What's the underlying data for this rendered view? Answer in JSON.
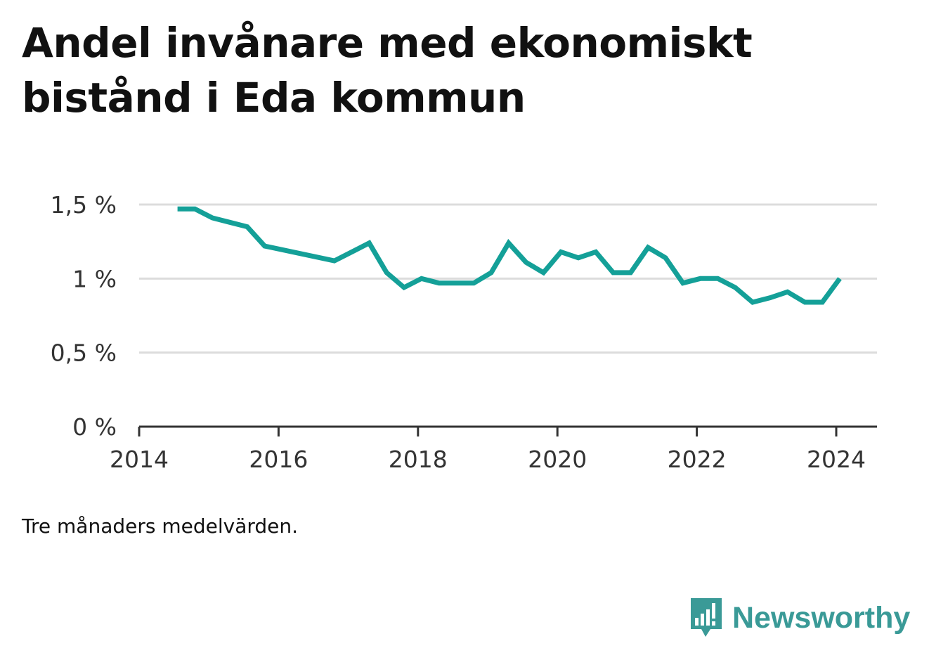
{
  "title": "Andel invånare med ekonomiskt bistånd i Eda kommun",
  "note": "Tre månaders medelvärden.",
  "brand": {
    "name": "Newsworthy",
    "icon": "bar-chart-speech-bubble-icon",
    "color": "#3a9a97"
  },
  "chart_data": {
    "type": "line",
    "title": "Andel invånare med ekonomiskt bistånd i Eda kommun",
    "xlabel": "",
    "ylabel": "",
    "line_color": "#14a098",
    "grid": true,
    "xlim": [
      2014,
      2024.5
    ],
    "ylim": [
      0,
      1.5
    ],
    "x_ticks": [
      2014,
      2016,
      2018,
      2020,
      2022,
      2024
    ],
    "x_tick_labels": [
      "2014",
      "2016",
      "2018",
      "2020",
      "2022",
      "2024"
    ],
    "y_ticks": [
      0,
      0.5,
      1,
      1.5
    ],
    "y_tick_labels": [
      "0 %",
      "0,5 %",
      "1 %",
      "1,5 %"
    ],
    "series": [
      {
        "x": [
          2014.55,
          2014.8,
          2015.05,
          2015.3,
          2015.55,
          2015.8,
          2016.8,
          2017.3,
          2017.55,
          2017.8,
          2018.05,
          2018.3,
          2018.55,
          2018.8,
          2019.05,
          2019.3,
          2019.55,
          2019.8,
          2020.05,
          2020.3,
          2020.55,
          2020.8,
          2021.05,
          2021.3,
          2021.55,
          2021.8,
          2022.05,
          2022.3,
          2022.55,
          2022.8,
          2023.05,
          2023.3,
          2023.55,
          2023.8,
          2024.05
        ],
        "values": [
          1.47,
          1.47,
          1.41,
          1.38,
          1.35,
          1.22,
          1.12,
          1.24,
          1.04,
          0.94,
          1.0,
          0.97,
          0.97,
          0.97,
          1.04,
          1.24,
          1.11,
          1.04,
          1.18,
          1.14,
          1.18,
          1.04,
          1.04,
          1.21,
          1.14,
          0.97,
          1.0,
          1.0,
          0.94,
          0.84,
          0.87,
          0.91,
          0.84,
          0.84,
          1.0
        ]
      }
    ]
  }
}
